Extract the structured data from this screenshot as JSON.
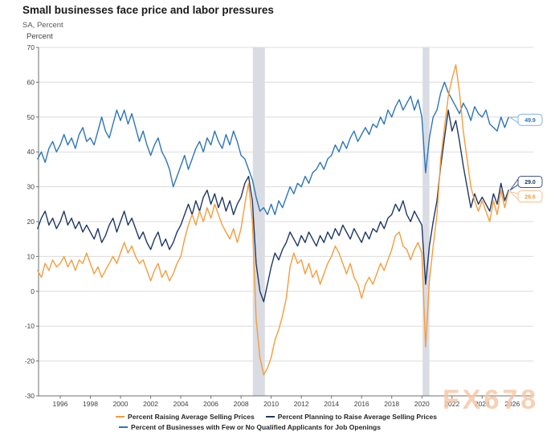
{
  "header": {
    "title": "Small businesses face price and labor pressures",
    "subtitle": "SA, Percent"
  },
  "watermark": "FX678",
  "chart_data": {
    "type": "line",
    "title": "Small businesses face price and labor pressures",
    "subtitle": "SA, Percent",
    "xlabel": "",
    "ylabel": "Percent",
    "ylim": [
      -30,
      70
    ],
    "y_ticks": [
      70,
      60,
      50,
      40,
      30,
      20,
      10,
      0,
      -10,
      -20,
      -30
    ],
    "x_ticks": [
      1996,
      1998,
      2000,
      2002,
      2004,
      2006,
      2008,
      2010,
      2012,
      2014,
      2016,
      2018,
      2020,
      2022,
      2024,
      2026
    ],
    "xlim": [
      1994.5,
      2027.3
    ],
    "x_start": 1994.5,
    "x_step": 0.25,
    "grid": "horizontal",
    "legend_position": "bottom",
    "recession_bands": [
      {
        "start": 2008.78,
        "end": 2009.58
      },
      {
        "start": 2020.05,
        "end": 2020.5
      }
    ],
    "band_color": "#d9dce3",
    "axis_color": "#6f6f6f",
    "grid_color": "#dcdcdc",
    "tick_label_color": "#3f3f3f",
    "series": [
      {
        "name": "Percent Raising Average Selling Prices",
        "color": "#F59C3C",
        "callout_border": "#F8BE8C",
        "end_label": "28.6",
        "values": [
          6,
          4,
          8,
          6,
          9,
          7,
          8,
          10,
          7,
          9,
          6,
          9,
          8,
          11,
          8,
          5,
          7,
          4,
          6,
          8,
          10,
          8,
          11,
          14,
          11,
          13,
          10,
          8,
          9,
          6,
          3,
          6,
          8,
          4,
          6,
          3,
          5,
          8,
          10,
          15,
          19,
          22,
          19,
          23,
          20,
          24,
          21,
          25,
          22,
          19,
          17,
          15,
          18,
          14,
          18,
          25,
          31,
          20,
          -8,
          -19,
          -24,
          -22,
          -19,
          -14,
          -11,
          -7,
          -2,
          7,
          11,
          8,
          9,
          5,
          8,
          4,
          6,
          2,
          5,
          8,
          10,
          13,
          11,
          8,
          5,
          8,
          4,
          2,
          -2,
          2,
          4,
          2,
          5,
          8,
          6,
          9,
          12,
          16,
          17,
          13,
          12,
          9,
          12,
          14,
          11,
          -16,
          3,
          13,
          22,
          38,
          47,
          56,
          61,
          65,
          57,
          46,
          38,
          30,
          26,
          23,
          26,
          23,
          20,
          26,
          22,
          29,
          24,
          28.6
        ]
      },
      {
        "name": "Percent Planning to Raise Average Selling Prices",
        "color": "#1F3864",
        "callout_border": "#41548a",
        "end_label": "29.0",
        "values": [
          18,
          21,
          23,
          19,
          21,
          18,
          20,
          23,
          19,
          21,
          18,
          20,
          17,
          19,
          17,
          15,
          18,
          14,
          16,
          19,
          21,
          17,
          20,
          23,
          19,
          21,
          18,
          15,
          17,
          14,
          12,
          15,
          17,
          13,
          15,
          12,
          14,
          17,
          19,
          22,
          25,
          22,
          26,
          23,
          27,
          29,
          25,
          28,
          24,
          27,
          23,
          26,
          22,
          25,
          27,
          31,
          33,
          26,
          8,
          0,
          -3,
          2,
          7,
          11,
          9,
          12,
          14,
          17,
          15,
          13,
          16,
          14,
          17,
          15,
          13,
          16,
          14,
          17,
          15,
          18,
          16,
          19,
          17,
          15,
          18,
          16,
          14,
          17,
          15,
          18,
          17,
          20,
          18,
          21,
          22,
          25,
          23,
          26,
          22,
          20,
          23,
          21,
          19,
          2,
          13,
          20,
          26,
          36,
          44,
          52,
          46,
          49,
          43,
          36,
          30,
          24,
          28,
          25,
          27,
          25,
          23,
          28,
          25,
          31,
          26,
          29
        ]
      },
      {
        "name": "Percent of Businesses with Few or No Qualified Applicants for Job Openings",
        "color": "#2E75B6",
        "callout_border": "#7FB2E0",
        "end_label": "49.9",
        "values": [
          38,
          40,
          37,
          41,
          43,
          40,
          42,
          45,
          42,
          44,
          41,
          45,
          47,
          43,
          44,
          42,
          46,
          50,
          46,
          44,
          48,
          52,
          49,
          52,
          48,
          51,
          47,
          43,
          46,
          42,
          39,
          42,
          44,
          40,
          38,
          35,
          30,
          33,
          36,
          39,
          35,
          38,
          41,
          43,
          40,
          44,
          42,
          46,
          43,
          41,
          45,
          42,
          46,
          43,
          39,
          38,
          35,
          32,
          27,
          23,
          24,
          22,
          25,
          22,
          26,
          24,
          27,
          30,
          28,
          31,
          30,
          33,
          31,
          34,
          35,
          37,
          35,
          38,
          39,
          42,
          40,
          43,
          41,
          44,
          46,
          43,
          45,
          47,
          45,
          48,
          47,
          50,
          48,
          52,
          50,
          53,
          55,
          52,
          54,
          56,
          52,
          55,
          50,
          34,
          44,
          50,
          52,
          57,
          60,
          57,
          55,
          53,
          51,
          54,
          52,
          49,
          53,
          51,
          50,
          52,
          48,
          47,
          46,
          50,
          47,
          49.9
        ]
      }
    ],
    "legend_rows": [
      [
        0,
        1
      ],
      [
        2
      ]
    ]
  }
}
